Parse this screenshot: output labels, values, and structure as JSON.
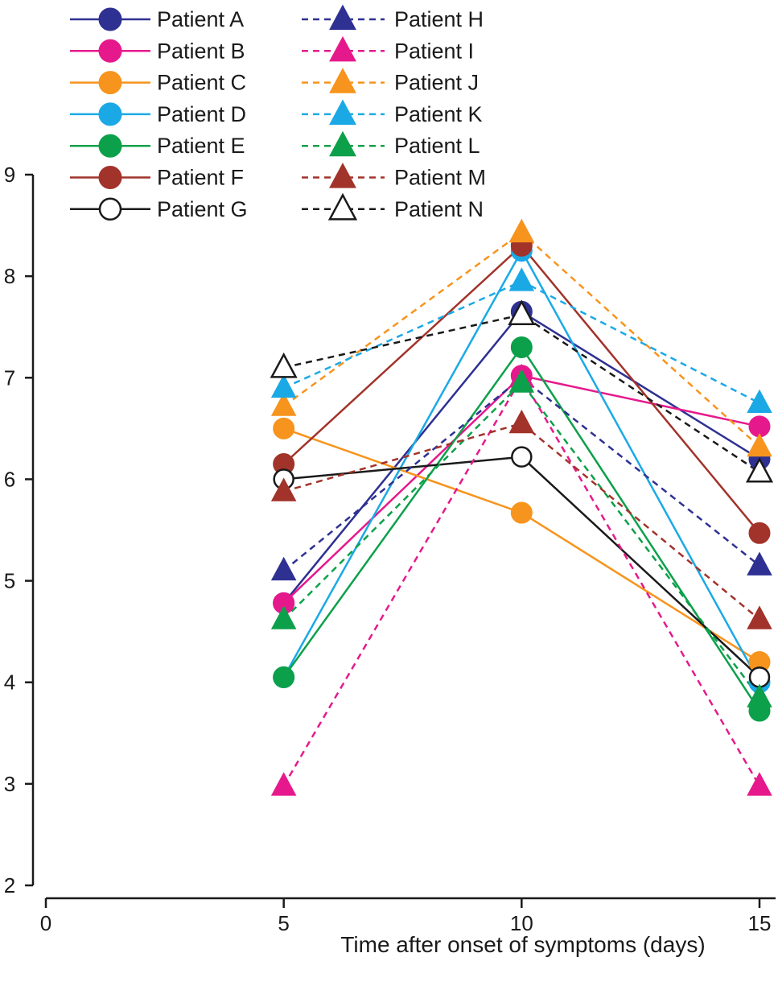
{
  "chart_data": {
    "type": "line",
    "title": "",
    "xlabel": "Time after onset of symptoms (days)",
    "ylabel": "",
    "xlim": [
      0,
      15
    ],
    "ylim": [
      2,
      9
    ],
    "x_ticks": [
      0,
      5,
      10,
      15
    ],
    "y_ticks": [
      2,
      3,
      4,
      5,
      6,
      7,
      8,
      9
    ],
    "x_tick_labels": [
      "0",
      "5",
      "10",
      "15"
    ],
    "y_tick_labels": [
      "2",
      "3",
      "4",
      "5",
      "6",
      "7",
      "8",
      "9"
    ],
    "x": [
      5,
      10,
      15
    ],
    "grid": false,
    "legend_position": "top-left",
    "series": [
      {
        "name": "Patient A",
        "values": [
          4.78,
          7.65,
          6.2
        ],
        "color": "#2e3192",
        "marker": "circle",
        "filled": true,
        "dashed": false
      },
      {
        "name": "Patient B",
        "values": [
          4.78,
          7.02,
          6.52
        ],
        "color": "#e6198c",
        "marker": "circle",
        "filled": true,
        "dashed": false
      },
      {
        "name": "Patient C",
        "values": [
          6.5,
          5.67,
          4.2
        ],
        "color": "#f7941d",
        "marker": "circle",
        "filled": true,
        "dashed": false
      },
      {
        "name": "Patient D",
        "values": [
          4.05,
          8.25,
          4.0
        ],
        "color": "#1ba9e6",
        "marker": "circle",
        "filled": true,
        "dashed": false
      },
      {
        "name": "Patient E",
        "values": [
          4.05,
          7.3,
          3.72
        ],
        "color": "#0da04a",
        "marker": "circle",
        "filled": true,
        "dashed": false
      },
      {
        "name": "Patient F",
        "values": [
          6.15,
          8.3,
          5.47
        ],
        "color": "#a2332a",
        "marker": "circle",
        "filled": true,
        "dashed": false
      },
      {
        "name": "Patient G",
        "values": [
          6.0,
          6.22,
          4.05
        ],
        "color": "#1a1a1a",
        "marker": "circle",
        "filled": false,
        "dashed": false
      },
      {
        "name": "Patient H",
        "values": [
          5.1,
          7.0,
          5.15
        ],
        "color": "#2e3192",
        "marker": "triangle",
        "filled": true,
        "dashed": true
      },
      {
        "name": "Patient I",
        "values": [
          2.98,
          7.0,
          2.98
        ],
        "color": "#e6198c",
        "marker": "triangle",
        "filled": true,
        "dashed": true
      },
      {
        "name": "Patient J",
        "values": [
          6.72,
          8.43,
          6.32
        ],
        "color": "#f7941d",
        "marker": "triangle",
        "filled": true,
        "dashed": true
      },
      {
        "name": "Patient K",
        "values": [
          6.9,
          7.95,
          6.75
        ],
        "color": "#1ba9e6",
        "marker": "triangle",
        "filled": true,
        "dashed": true
      },
      {
        "name": "Patient L",
        "values": [
          4.62,
          6.95,
          3.85
        ],
        "color": "#0da04a",
        "marker": "triangle",
        "filled": true,
        "dashed": true
      },
      {
        "name": "Patient M",
        "values": [
          5.88,
          6.55,
          4.62
        ],
        "color": "#a2332a",
        "marker": "triangle",
        "filled": true,
        "dashed": true
      },
      {
        "name": "Patient N",
        "values": [
          7.1,
          7.62,
          6.07
        ],
        "color": "#1a1a1a",
        "marker": "triangle",
        "filled": false,
        "dashed": true
      }
    ]
  }
}
